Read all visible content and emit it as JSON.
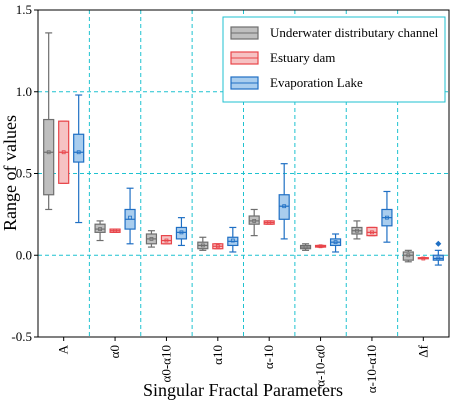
{
  "chart_data": {
    "type": "boxplot",
    "xlabel": "Singular Fractal Parameters",
    "ylabel": "Range of values",
    "ylim": [
      -0.5,
      1.5
    ],
    "y_ticks": [
      "-0.5",
      "0.0",
      "0.5",
      "1.0",
      "1.5"
    ],
    "grid": "dashed, cyan",
    "legend_position": "top-right",
    "categories": [
      "A",
      "α0",
      "α0-α10",
      "α10",
      "α-10",
      "α-10-α0",
      "α-10-α10",
      "Δf"
    ],
    "series": [
      {
        "name": "Underwater distributary channel",
        "color": "#6e6e6e",
        "fill": "#bfbfbf",
        "boxes": [
          {
            "min": 0.28,
            "q1": 0.37,
            "median": 0.63,
            "q3": 0.83,
            "max": 1.36,
            "mean": 0.63
          },
          {
            "min": 0.09,
            "q1": 0.14,
            "median": 0.16,
            "q3": 0.19,
            "max": 0.21,
            "mean": 0.16
          },
          {
            "min": 0.05,
            "q1": 0.07,
            "median": 0.1,
            "q3": 0.13,
            "max": 0.15,
            "mean": 0.1
          },
          {
            "min": 0.03,
            "q1": 0.04,
            "median": 0.06,
            "q3": 0.08,
            "max": 0.11,
            "mean": 0.06
          },
          {
            "min": 0.12,
            "q1": 0.19,
            "median": 0.21,
            "q3": 0.24,
            "max": 0.28,
            "mean": 0.21
          },
          {
            "min": 0.03,
            "q1": 0.04,
            "median": 0.05,
            "q3": 0.06,
            "max": 0.07,
            "mean": 0.05
          },
          {
            "min": 0.1,
            "q1": 0.13,
            "median": 0.15,
            "q3": 0.17,
            "max": 0.21,
            "mean": 0.15
          },
          {
            "min": -0.04,
            "q1": -0.03,
            "median": 0.0,
            "q3": 0.02,
            "max": 0.03,
            "mean": 0.0
          }
        ]
      },
      {
        "name": "Estuary dam",
        "color": "#e8454a",
        "fill": "#f6c2c3",
        "boxes": [
          {
            "min": 0.44,
            "q1": 0.44,
            "median": 0.63,
            "q3": 0.82,
            "max": 0.82,
            "mean": 0.63
          },
          {
            "min": 0.14,
            "q1": 0.14,
            "median": 0.15,
            "q3": 0.16,
            "max": 0.16,
            "mean": 0.15
          },
          {
            "min": 0.07,
            "q1": 0.07,
            "median": 0.09,
            "q3": 0.12,
            "max": 0.12,
            "mean": 0.09
          },
          {
            "min": 0.04,
            "q1": 0.04,
            "median": 0.055,
            "q3": 0.07,
            "max": 0.07,
            "mean": 0.055
          },
          {
            "min": 0.19,
            "q1": 0.19,
            "median": 0.2,
            "q3": 0.21,
            "max": 0.21,
            "mean": 0.2
          },
          {
            "min": 0.05,
            "q1": 0.05,
            "median": 0.055,
            "q3": 0.06,
            "max": 0.06,
            "mean": 0.055
          },
          {
            "min": 0.12,
            "q1": 0.12,
            "median": 0.14,
            "q3": 0.17,
            "max": 0.17,
            "mean": 0.14
          },
          {
            "min": -0.02,
            "q1": -0.02,
            "median": -0.02,
            "q3": -0.015,
            "max": -0.015,
            "mean": -0.02
          }
        ]
      },
      {
        "name": "Evaporation Lake",
        "color": "#1f6fc4",
        "fill": "#a9cdee",
        "boxes": [
          {
            "min": 0.2,
            "q1": 0.57,
            "median": 0.63,
            "q3": 0.74,
            "max": 0.98,
            "mean": 0.63
          },
          {
            "min": 0.07,
            "q1": 0.16,
            "median": 0.22,
            "q3": 0.28,
            "max": 0.41,
            "mean": 0.23
          },
          {
            "min": 0.06,
            "q1": 0.1,
            "median": 0.14,
            "q3": 0.17,
            "max": 0.23,
            "mean": 0.14
          },
          {
            "min": 0.02,
            "q1": 0.06,
            "median": 0.085,
            "q3": 0.11,
            "max": 0.17,
            "mean": 0.09
          },
          {
            "min": 0.1,
            "q1": 0.22,
            "median": 0.3,
            "q3": 0.37,
            "max": 0.56,
            "mean": 0.3
          },
          {
            "min": 0.02,
            "q1": 0.06,
            "median": 0.08,
            "q3": 0.1,
            "max": 0.13,
            "mean": 0.08
          },
          {
            "min": 0.08,
            "q1": 0.18,
            "median": 0.23,
            "q3": 0.28,
            "max": 0.39,
            "mean": 0.23
          },
          {
            "min": -0.06,
            "q1": -0.03,
            "median": -0.02,
            "q3": 0.0,
            "max": 0.03,
            "mean": -0.02,
            "outliers": [
              0.07
            ]
          }
        ]
      }
    ]
  }
}
